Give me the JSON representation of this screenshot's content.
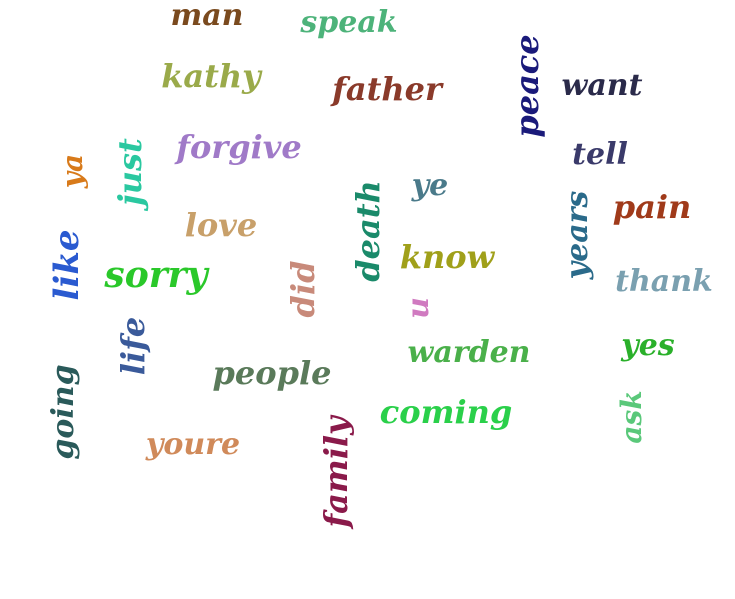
{
  "words": [
    {
      "text": "man",
      "color": "#7a4a1e"
    },
    {
      "text": "speak",
      "color": "#4db37a"
    },
    {
      "text": "peace",
      "color": "#1a1a7a"
    },
    {
      "text": "kathy",
      "color": "#9aaa4a"
    },
    {
      "text": "father",
      "color": "#8a3a2a"
    },
    {
      "text": "want",
      "color": "#2a2a4a"
    },
    {
      "text": "forgive",
      "color": "#a07ac8"
    },
    {
      "text": "tell",
      "color": "#3a3a6a"
    },
    {
      "text": "ya",
      "color": "#d87a1a"
    },
    {
      "text": "just",
      "color": "#2ac8a0"
    },
    {
      "text": "ye",
      "color": "#4a7a8a"
    },
    {
      "text": "death",
      "color": "#1a8a6a"
    },
    {
      "text": "pain",
      "color": "#a03a1a"
    },
    {
      "text": "years",
      "color": "#2a6a8a"
    },
    {
      "text": "love",
      "color": "#c8a06a"
    },
    {
      "text": "like",
      "color": "#2a5ad0"
    },
    {
      "text": "know",
      "color": "#a0a01a"
    },
    {
      "text": "sorry",
      "color": "#2ac82a"
    },
    {
      "text": "did",
      "color": "#c88a7a"
    },
    {
      "text": "thank",
      "color": "#7aa0b0"
    },
    {
      "text": "u",
      "color": "#d07ac0"
    },
    {
      "text": "life",
      "color": "#3a5a9a"
    },
    {
      "text": "warden",
      "color": "#4ab04a"
    },
    {
      "text": "yes",
      "color": "#2ab02a"
    },
    {
      "text": "people",
      "color": "#5a7a5a"
    },
    {
      "text": "going",
      "color": "#2a5a5a"
    },
    {
      "text": "coming",
      "color": "#2ad04a"
    },
    {
      "text": "ask",
      "color": "#5ac87a"
    },
    {
      "text": "youre",
      "color": "#d08a5a"
    },
    {
      "text": "family",
      "color": "#8a1a4a"
    }
  ]
}
